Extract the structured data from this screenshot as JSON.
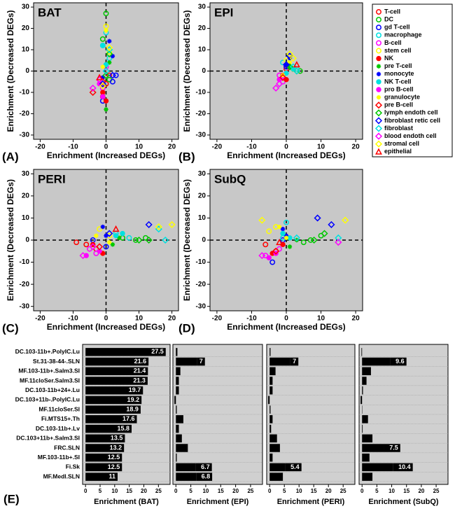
{
  "legend": [
    {
      "name": "T-cell",
      "color": "#ff0000",
      "marker": "circle"
    },
    {
      "name": "DC",
      "color": "#00c800",
      "marker": "circle"
    },
    {
      "name": "gd T-cell",
      "color": "#0000ff",
      "marker": "circle"
    },
    {
      "name": "macrophage",
      "color": "#00e0e0",
      "marker": "circle"
    },
    {
      "name": "B-cell",
      "color": "#ff00ff",
      "marker": "circle"
    },
    {
      "name": "stem cell",
      "color": "#ffff00",
      "marker": "circle"
    },
    {
      "name": "NK",
      "color": "#ff0000",
      "marker": "dot"
    },
    {
      "name": "pre T-cell",
      "color": "#00c800",
      "marker": "asterisk"
    },
    {
      "name": "monocyte",
      "color": "#0000ff",
      "marker": "asterisk"
    },
    {
      "name": "NK T-cell",
      "color": "#00e0e0",
      "marker": "dot"
    },
    {
      "name": "pro B-cell",
      "color": "#ff00ff",
      "marker": "dot"
    },
    {
      "name": "granulocyte",
      "color": "#ffff00",
      "marker": "asterisk"
    },
    {
      "name": "pre B-cell",
      "color": "#ff0000",
      "marker": "diamond"
    },
    {
      "name": "lymph endoth cell",
      "color": "#00c800",
      "marker": "diamond"
    },
    {
      "name": "fibroblast retic cell",
      "color": "#0000ff",
      "marker": "diamond"
    },
    {
      "name": "fibroblast",
      "color": "#00e0e0",
      "marker": "diamond"
    },
    {
      "name": "blood endoth cell",
      "color": "#ff00ff",
      "marker": "diamond"
    },
    {
      "name": "stromal cell",
      "color": "#ffff00",
      "marker": "diamond"
    },
    {
      "name": "epithelial",
      "color": "#ff0000",
      "marker": "triangle"
    }
  ],
  "chart_data": [
    {
      "type": "scatter",
      "title": "BAT",
      "panel_label": "(A)",
      "x_label": "Enrichment (Increased DEGs)",
      "y_label": "Enrichment (Decreased DEGs)",
      "xlim": [
        -22,
        22
      ],
      "ylim": [
        -32,
        32
      ],
      "xticks": [
        -20,
        -10,
        0,
        10,
        20
      ],
      "yticks": [
        -30,
        -20,
        -10,
        0,
        10,
        20,
        30
      ],
      "series": [
        {
          "x": [
            -1,
            0,
            1
          ],
          "y": [
            -12,
            -6,
            -2
          ]
        },
        {
          "x": [
            0,
            -1,
            1
          ],
          "y": [
            27,
            15,
            -4
          ]
        },
        {
          "x": [
            2,
            3,
            -1
          ],
          "y": [
            -5,
            -2,
            -14
          ]
        },
        {
          "x": [
            0,
            -1,
            1
          ],
          "y": [
            18,
            12,
            6
          ]
        },
        {
          "x": [
            -2,
            -1,
            0
          ],
          "y": [
            -4,
            -8,
            2
          ]
        },
        {
          "x": [
            0,
            1
          ],
          "y": [
            21,
            9
          ]
        },
        {
          "x": [
            -1,
            0
          ],
          "y": [
            -10,
            -14
          ]
        },
        {
          "x": [
            0,
            1
          ],
          "y": [
            -18,
            4
          ]
        },
        {
          "x": [
            1,
            2,
            -1
          ],
          "y": [
            14,
            7,
            -3
          ]
        },
        {
          "x": [
            -1,
            0
          ],
          "y": [
            12,
            3
          ]
        },
        {
          "x": [
            -2,
            -1
          ],
          "y": [
            -6,
            -12
          ]
        },
        {
          "x": [
            0,
            -1
          ],
          "y": [
            19,
            2
          ]
        },
        {
          "x": [
            -4,
            -1
          ],
          "y": [
            -10,
            -5
          ]
        },
        {
          "x": [
            1,
            0
          ],
          "y": [
            8,
            -2
          ]
        },
        {
          "x": [
            2,
            -1
          ],
          "y": [
            -2,
            -6
          ]
        },
        {
          "x": [
            1,
            0
          ],
          "y": [
            10,
            0
          ]
        },
        {
          "x": [
            -4,
            -2
          ],
          "y": [
            -8,
            -4
          ]
        },
        {
          "x": [
            -1,
            1
          ],
          "y": [
            -7,
            11
          ]
        },
        {
          "x": [
            -2
          ],
          "y": [
            -3
          ]
        }
      ]
    },
    {
      "type": "scatter",
      "title": "EPI",
      "panel_label": "(B)",
      "x_label": "Enrichment (Increased DEGs)",
      "y_label": "Enrichment (Decreased DEGs)",
      "xlim": [
        -22,
        22
      ],
      "ylim": [
        -32,
        32
      ],
      "xticks": [
        -20,
        -10,
        0,
        10,
        20
      ],
      "yticks": [
        -30,
        -20,
        -10,
        0,
        10,
        20,
        30
      ],
      "series": [
        {
          "x": [
            -1,
            0
          ],
          "y": [
            -3,
            1
          ]
        },
        {
          "x": [
            2,
            4
          ],
          "y": [
            1,
            0
          ]
        },
        {
          "x": [
            1,
            0
          ],
          "y": [
            7,
            2
          ]
        },
        {
          "x": [
            3,
            -1
          ],
          "y": [
            1,
            4
          ]
        },
        {
          "x": [
            -2,
            -1
          ],
          "y": [
            -2,
            -5
          ]
        },
        {
          "x": [
            0,
            2
          ],
          "y": [
            5,
            1
          ]
        },
        {
          "x": [
            -1,
            0
          ],
          "y": [
            -2,
            -4
          ]
        },
        {
          "x": [
            0,
            1
          ],
          "y": [
            -1,
            2
          ]
        },
        {
          "x": [
            1,
            0
          ],
          "y": [
            6,
            3
          ]
        },
        {
          "x": [
            2,
            0
          ],
          "y": [
            1,
            -1
          ]
        },
        {
          "x": [
            -2,
            -1
          ],
          "y": [
            -4,
            -3
          ]
        },
        {
          "x": [
            1,
            -1
          ],
          "y": [
            4,
            -2
          ]
        },
        {
          "x": [
            -1
          ],
          "y": [
            -3
          ]
        },
        {
          "x": [
            3,
            1
          ],
          "y": [
            0,
            2
          ]
        },
        {
          "x": [
            1,
            0
          ],
          "y": [
            7,
            3
          ]
        },
        {
          "x": [
            2,
            3
          ],
          "y": [
            2,
            0
          ]
        },
        {
          "x": [
            -3,
            -2
          ],
          "y": [
            -8,
            -6
          ]
        },
        {
          "x": [
            1,
            2
          ],
          "y": [
            8,
            6
          ]
        },
        {
          "x": [
            3
          ],
          "y": [
            3
          ]
        }
      ]
    },
    {
      "type": "scatter",
      "title": "PERI",
      "panel_label": "(C)",
      "x_label": "Enrichment (Increased DEGs)",
      "y_label": "Enrichment (Decreased DEGs)",
      "xlim": [
        -22,
        22
      ],
      "ylim": [
        -32,
        32
      ],
      "xticks": [
        -20,
        -10,
        0,
        10,
        20
      ],
      "yticks": [
        -30,
        -20,
        -10,
        0,
        10,
        20,
        30
      ],
      "series": [
        {
          "x": [
            -9,
            -6,
            -3
          ],
          "y": [
            -1,
            -2,
            -4
          ]
        },
        {
          "x": [
            5,
            9,
            12
          ],
          "y": [
            1,
            0,
            1
          ]
        },
        {
          "x": [
            -4,
            0
          ],
          "y": [
            0,
            -3
          ]
        },
        {
          "x": [
            3,
            7
          ],
          "y": [
            3,
            1
          ]
        },
        {
          "x": [
            -5,
            -3
          ],
          "y": [
            -4,
            -6
          ]
        },
        {
          "x": [
            -2,
            1
          ],
          "y": [
            5,
            2
          ]
        },
        {
          "x": [
            -4,
            -1
          ],
          "y": [
            -2,
            -6
          ]
        },
        {
          "x": [
            2,
            4
          ],
          "y": [
            -2,
            1
          ]
        },
        {
          "x": [
            -1,
            0
          ],
          "y": [
            6,
            2
          ]
        },
        {
          "x": [
            3,
            5
          ],
          "y": [
            2,
            3
          ]
        },
        {
          "x": [
            -6,
            -2
          ],
          "y": [
            -7,
            -5
          ]
        },
        {
          "x": [
            -3,
            1
          ],
          "y": [
            2,
            -1
          ]
        },
        {
          "x": [
            -2
          ],
          "y": [
            -3
          ]
        },
        {
          "x": [
            10,
            13
          ],
          "y": [
            0,
            0
          ]
        },
        {
          "x": [
            13,
            1
          ],
          "y": [
            7,
            3
          ]
        },
        {
          "x": [
            18,
            16
          ],
          "y": [
            0,
            5
          ]
        },
        {
          "x": [
            -7,
            -4
          ],
          "y": [
            -7,
            -3
          ]
        },
        {
          "x": [
            20,
            16
          ],
          "y": [
            7,
            6
          ]
        },
        {
          "x": [
            3
          ],
          "y": [
            5
          ]
        }
      ]
    },
    {
      "type": "scatter",
      "title": "SubQ",
      "panel_label": "(D)",
      "x_label": "Enrichment (Increased DEGs)",
      "y_label": "Enrichment (Decreased DEGs)",
      "xlim": [
        -22,
        22
      ],
      "ylim": [
        -32,
        32
      ],
      "xticks": [
        -20,
        -10,
        0,
        10,
        20
      ],
      "yticks": [
        -30,
        -20,
        -10,
        0,
        10,
        20,
        30
      ],
      "series": [
        {
          "x": [
            -6,
            -3
          ],
          "y": [
            -2,
            -5
          ]
        },
        {
          "x": [
            5,
            10,
            7
          ],
          "y": [
            -1,
            2,
            0
          ]
        },
        {
          "x": [
            -4,
            -1
          ],
          "y": [
            -10,
            0
          ]
        },
        {
          "x": [
            -1,
            0
          ],
          "y": [
            1,
            8
          ]
        },
        {
          "x": [
            -6,
            -2
          ],
          "y": [
            -7,
            -4
          ]
        },
        {
          "x": [
            -5,
            -3
          ],
          "y": [
            4,
            6
          ]
        },
        {
          "x": [
            -4,
            -1
          ],
          "y": [
            -6,
            -2
          ]
        },
        {
          "x": [
            1,
            3
          ],
          "y": [
            -3,
            0
          ]
        },
        {
          "x": [
            -1,
            0
          ],
          "y": [
            5,
            2
          ]
        },
        {
          "x": [
            -1,
            1
          ],
          "y": [
            3,
            1
          ]
        },
        {
          "x": [
            -5,
            -3
          ],
          "y": [
            -8,
            -6
          ]
        },
        {
          "x": [
            -2,
            0
          ],
          "y": [
            6,
            1
          ]
        },
        {
          "x": [
            -3
          ],
          "y": [
            -5
          ]
        },
        {
          "x": [
            11,
            8
          ],
          "y": [
            3,
            0
          ]
        },
        {
          "x": [
            9,
            13
          ],
          "y": [
            10,
            7
          ]
        },
        {
          "x": [
            3,
            15
          ],
          "y": [
            1,
            1
          ]
        },
        {
          "x": [
            -7,
            15
          ],
          "y": [
            -7,
            -1
          ]
        },
        {
          "x": [
            -7,
            17
          ],
          "y": [
            9,
            9
          ]
        },
        {
          "x": [
            -2
          ],
          "y": [
            -1
          ]
        }
      ]
    },
    {
      "type": "barh",
      "panel_label": "(E)",
      "x_label": "Enrichment (BAT)",
      "xlim": [
        -1,
        29
      ],
      "xticks": [
        0,
        5,
        10,
        15,
        20,
        25
      ],
      "categories": [
        "DC.103-11b+.PolyIC.Lu",
        "St.31-38-44-.SLN",
        "MF.103-11b+.Salm3.SI",
        "MF.11cloSer.Salm3.SI",
        "DC.103-11b+24+.Lu",
        "DC.103+11b-.PolyIC.Lu",
        "MF.11cloSer.SI",
        "Fi.MTS15+.Th",
        "DC.103-11b+.Lv",
        "DC.103+11b+.Salm3.SI",
        "FRC.SLN",
        "MF.103-11b+.SI",
        "Fi.Sk",
        "MF.Medl.SLN"
      ],
      "values": [
        27.5,
        21.6,
        21.4,
        21.3,
        19.7,
        19.2,
        18.9,
        17.6,
        15.8,
        13.5,
        13.2,
        12.5,
        12.5,
        11
      ],
      "value_labels": [
        "27.5",
        "21.6",
        "21.4",
        "21.3",
        "19.7",
        "19.2",
        "18.9",
        "17.6",
        "15.8",
        "13.5",
        "13.2",
        "12.5",
        "12.5",
        "11"
      ]
    },
    {
      "type": "barh",
      "x_label": "Enrichment (EPI)",
      "xlim": [
        -1,
        29
      ],
      "xticks": [
        0,
        5,
        10,
        15,
        20,
        25
      ],
      "values": [
        0.5,
        7,
        1.5,
        1,
        1,
        -0.5,
        0.3,
        2.5,
        1,
        2,
        4,
        0.3,
        6.7,
        6.8
      ],
      "value_labels": [
        null,
        "7",
        null,
        null,
        null,
        null,
        null,
        null,
        null,
        null,
        null,
        null,
        "6.7",
        "6.8"
      ]
    },
    {
      "type": "barh",
      "x_label": "Enrichment (PERI)",
      "xlim": [
        -1,
        29
      ],
      "xticks": [
        0,
        5,
        10,
        15,
        20,
        25
      ],
      "values": [
        0.3,
        7,
        2,
        1,
        1,
        -0.5,
        0.3,
        1,
        0.5,
        2.5,
        3.5,
        1,
        5.4,
        4.5
      ],
      "value_labels": [
        null,
        "7",
        null,
        null,
        null,
        null,
        null,
        null,
        null,
        null,
        null,
        null,
        "5.4",
        null
      ]
    },
    {
      "type": "barh",
      "x_label": "Enrichment (SubQ)",
      "xlim": [
        -1,
        29
      ],
      "xticks": [
        0,
        5,
        10,
        15,
        20,
        25
      ],
      "values": [
        -0.2,
        9.6,
        3,
        1.5,
        0.3,
        -0.5,
        0.1,
        2,
        0.2,
        3.5,
        7.5,
        2.5,
        10.4,
        3.5
      ],
      "value_labels": [
        null,
        "9.6",
        null,
        null,
        null,
        null,
        null,
        null,
        null,
        null,
        "7.5",
        null,
        "10.4",
        null
      ]
    }
  ]
}
